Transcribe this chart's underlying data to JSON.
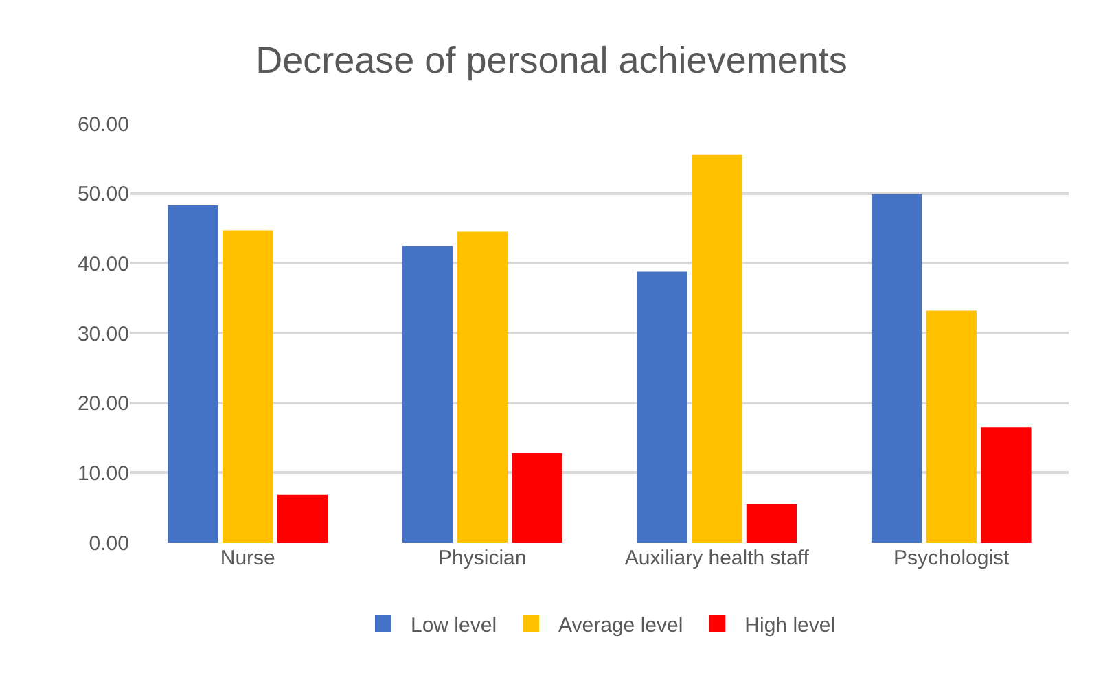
{
  "chart_data": {
    "type": "bar",
    "title": "Decrease of personal achievements",
    "categories": [
      "Nurse",
      "Physician",
      "Auxiliary health staff",
      "Psychologist"
    ],
    "series": [
      {
        "name": "Low level",
        "color": "#4472c4",
        "values": [
          48.3,
          42.5,
          38.8,
          49.9
        ]
      },
      {
        "name": "Average level",
        "color": "#ffc000",
        "values": [
          44.7,
          44.5,
          55.6,
          33.2
        ]
      },
      {
        "name": "High level",
        "color": "#ff0000",
        "values": [
          6.8,
          12.8,
          5.5,
          16.5
        ]
      }
    ],
    "ylim": [
      0,
      60
    ],
    "yticks": [
      {
        "value": 0,
        "label": "0.00"
      },
      {
        "value": 10,
        "label": "10.00"
      },
      {
        "value": 20,
        "label": "20.00"
      },
      {
        "value": 30,
        "label": "30.00"
      },
      {
        "value": 40,
        "label": "40.00"
      },
      {
        "value": 50,
        "label": "50.00"
      },
      {
        "value": 60,
        "label": "60.00"
      }
    ],
    "grid": "y",
    "legend": "bottom"
  }
}
